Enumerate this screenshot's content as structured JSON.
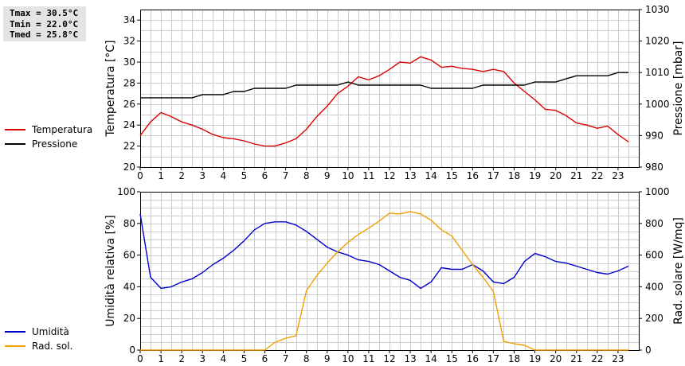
{
  "stats": {
    "tmax": "Tmax = 30.5°C",
    "tmin": "Tmin = 22.0°C",
    "tmed": "Tmed = 25.8°C"
  },
  "colors": {
    "red": "#dd0000",
    "black": "#000000",
    "blue": "#0000cc",
    "orange": "#f0a000",
    "grid": "#cccccc"
  },
  "chart_data": [
    {
      "type": "line",
      "x_ticks": [
        "0",
        "1",
        "2",
        "3",
        "4",
        "5",
        "6",
        "7",
        "8",
        "9",
        "10",
        "11",
        "12",
        "13",
        "14",
        "15",
        "16",
        "17",
        "18",
        "19",
        "20",
        "21",
        "22",
        "23"
      ],
      "xlim": [
        0,
        24
      ],
      "ylabel": "Temperatura [°C]",
      "ylim": [
        20,
        35
      ],
      "y_ticks": [
        "20",
        "22",
        "24",
        "26",
        "28",
        "30",
        "32",
        "34"
      ],
      "y2label": "Pressione [mbar]",
      "y2lim": [
        980,
        1030
      ],
      "y2_ticks": [
        "980",
        "990",
        "1000",
        "1010",
        "1020",
        "1030"
      ],
      "grid": true,
      "legend_position": "left",
      "series": [
        {
          "name": "Temperatura",
          "axis": "left",
          "color": "#dd0000",
          "x": [
            0,
            0.5,
            1,
            1.5,
            2,
            2.5,
            3,
            3.5,
            4,
            4.5,
            5,
            5.5,
            6,
            6.5,
            7,
            7.5,
            8,
            8.5,
            9,
            9.5,
            10,
            10.5,
            11,
            11.5,
            12,
            12.5,
            13,
            13.5,
            14,
            14.5,
            15,
            15.5,
            16,
            16.5,
            17,
            17.5,
            18,
            18.5,
            19,
            19.5,
            20,
            20.5,
            21,
            21.5,
            22,
            22.5,
            23,
            23.5
          ],
          "values": [
            23.0,
            24.3,
            25.2,
            24.8,
            24.3,
            24.0,
            23.6,
            23.1,
            22.8,
            22.7,
            22.5,
            22.2,
            22.0,
            22.0,
            22.3,
            22.7,
            23.6,
            24.8,
            25.8,
            27.0,
            27.7,
            28.6,
            28.3,
            28.7,
            29.3,
            30.0,
            29.9,
            30.5,
            30.2,
            29.5,
            29.6,
            29.4,
            29.3,
            29.1,
            29.3,
            29.1,
            28.0,
            27.2,
            26.4,
            25.5,
            25.4,
            24.9,
            24.2,
            24.0,
            23.7,
            23.9,
            23.1,
            22.4
          ]
        },
        {
          "name": "Pressione",
          "axis": "right",
          "color": "#000000",
          "x": [
            0,
            0.5,
            1,
            1.5,
            2,
            2.5,
            3,
            3.5,
            4,
            4.5,
            5,
            5.5,
            6,
            6.5,
            7,
            7.5,
            8,
            8.5,
            9,
            9.5,
            10,
            10.5,
            11,
            11.5,
            12,
            12.5,
            13,
            13.5,
            14,
            14.5,
            15,
            15.5,
            16,
            16.5,
            17,
            17.5,
            18,
            18.5,
            19,
            19.5,
            20,
            20.5,
            21,
            21.5,
            22,
            22.5,
            23,
            23.5
          ],
          "values": [
            1002,
            1002,
            1002,
            1002,
            1002,
            1002,
            1003,
            1003,
            1003,
            1004,
            1004,
            1005,
            1005,
            1005,
            1005,
            1006,
            1006,
            1006,
            1006,
            1006,
            1007,
            1006,
            1006,
            1006,
            1006,
            1006,
            1006,
            1006,
            1005,
            1005,
            1005,
            1005,
            1005,
            1006,
            1006,
            1006,
            1006,
            1006,
            1007,
            1007,
            1007,
            1008,
            1009,
            1009,
            1009,
            1009,
            1010,
            1010
          ]
        }
      ]
    },
    {
      "type": "line",
      "x_ticks": [
        "0",
        "1",
        "2",
        "3",
        "4",
        "5",
        "6",
        "7",
        "8",
        "9",
        "10",
        "11",
        "12",
        "13",
        "14",
        "15",
        "16",
        "17",
        "18",
        "19",
        "20",
        "21",
        "22",
        "23"
      ],
      "xlim": [
        0,
        24
      ],
      "ylabel": "Umidità relativa [%]",
      "ylim": [
        0,
        100
      ],
      "y_ticks": [
        "0",
        "20",
        "40",
        "60",
        "80",
        "100"
      ],
      "y2label": "Rad. solare [W/mq]",
      "y2lim": [
        0,
        1000
      ],
      "y2_ticks": [
        "0",
        "200",
        "400",
        "600",
        "800",
        "1000"
      ],
      "grid": true,
      "legend_position": "left",
      "series": [
        {
          "name": "Umidità",
          "axis": "left",
          "color": "#0000cc",
          "x": [
            0,
            0.5,
            1,
            1.5,
            2,
            2.5,
            3,
            3.5,
            4,
            4.5,
            5,
            5.5,
            6,
            6.5,
            7,
            7.5,
            8,
            8.5,
            9,
            9.5,
            10,
            10.5,
            11,
            11.5,
            12,
            12.5,
            13,
            13.5,
            14,
            14.5,
            15,
            15.5,
            16,
            16.5,
            17,
            17.5,
            18,
            18.5,
            19,
            19.5,
            20,
            20.5,
            21,
            21.5,
            22,
            22.5,
            23,
            23.5
          ],
          "values": [
            86,
            46,
            39,
            40,
            43,
            45,
            49,
            54,
            58,
            63,
            69,
            76,
            80,
            81,
            81,
            79,
            75,
            70,
            65,
            62,
            60,
            57,
            56,
            54,
            50,
            46,
            44,
            39,
            43,
            52,
            51,
            51,
            54,
            50,
            43,
            42,
            46,
            56,
            61,
            59,
            56,
            55,
            53,
            51,
            49,
            48,
            50,
            53
          ]
        },
        {
          "name": "Rad. sol.",
          "axis": "right",
          "color": "#f0a000",
          "x": [
            0,
            1,
            2,
            3,
            4,
            5,
            5.5,
            6,
            6.5,
            7,
            7.5,
            8,
            8.5,
            9,
            9.5,
            10,
            10.5,
            11,
            11.5,
            12,
            12.5,
            13,
            13.5,
            14,
            14.5,
            15,
            15.5,
            16,
            16.5,
            17,
            17.5,
            18,
            18.5,
            19,
            20,
            21,
            22,
            23,
            23.5
          ],
          "values": [
            0,
            0,
            0,
            0,
            0,
            0,
            0,
            0,
            50,
            75,
            90,
            375,
            470,
            550,
            620,
            680,
            730,
            770,
            815,
            865,
            860,
            875,
            860,
            820,
            760,
            720,
            630,
            540,
            460,
            370,
            55,
            40,
            30,
            0,
            0,
            0,
            0,
            0,
            0
          ]
        }
      ]
    }
  ]
}
